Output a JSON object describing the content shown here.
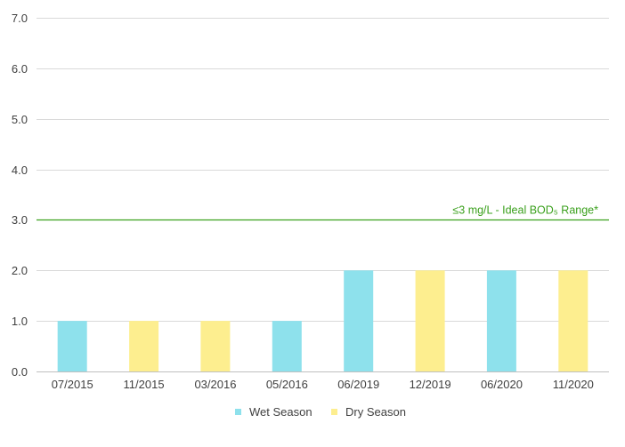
{
  "chart_data": {
    "type": "bar",
    "categories": [
      "07/2015",
      "11/2015",
      "03/2016",
      "05/2016",
      "06/2019",
      "12/2019",
      "06/2020",
      "11/2020"
    ],
    "values": [
      1.0,
      1.0,
      1.0,
      1.0,
      2.0,
      2.0,
      2.0,
      2.0
    ],
    "seasons": [
      "Wet Season",
      "Dry Season",
      "Dry Season",
      "Wet Season",
      "Wet Season",
      "Dry Season",
      "Wet Season",
      "Dry Season"
    ],
    "series": [
      {
        "name": "Wet Season",
        "color": "#8ee1ec"
      },
      {
        "name": "Dry Season",
        "color": "#fdee8f"
      }
    ],
    "yticks": [
      "0.0",
      "1.0",
      "2.0",
      "3.0",
      "4.0",
      "5.0",
      "6.0",
      "7.0"
    ],
    "ylim": [
      0,
      7
    ],
    "grid": true,
    "legend_position": "bottom",
    "reference_line": {
      "value": 3.0,
      "label": "≤3 mg/L - Ideal BOD₅ Range*",
      "color": "#3aa01c"
    },
    "title": "",
    "xlabel": "",
    "ylabel": ""
  }
}
